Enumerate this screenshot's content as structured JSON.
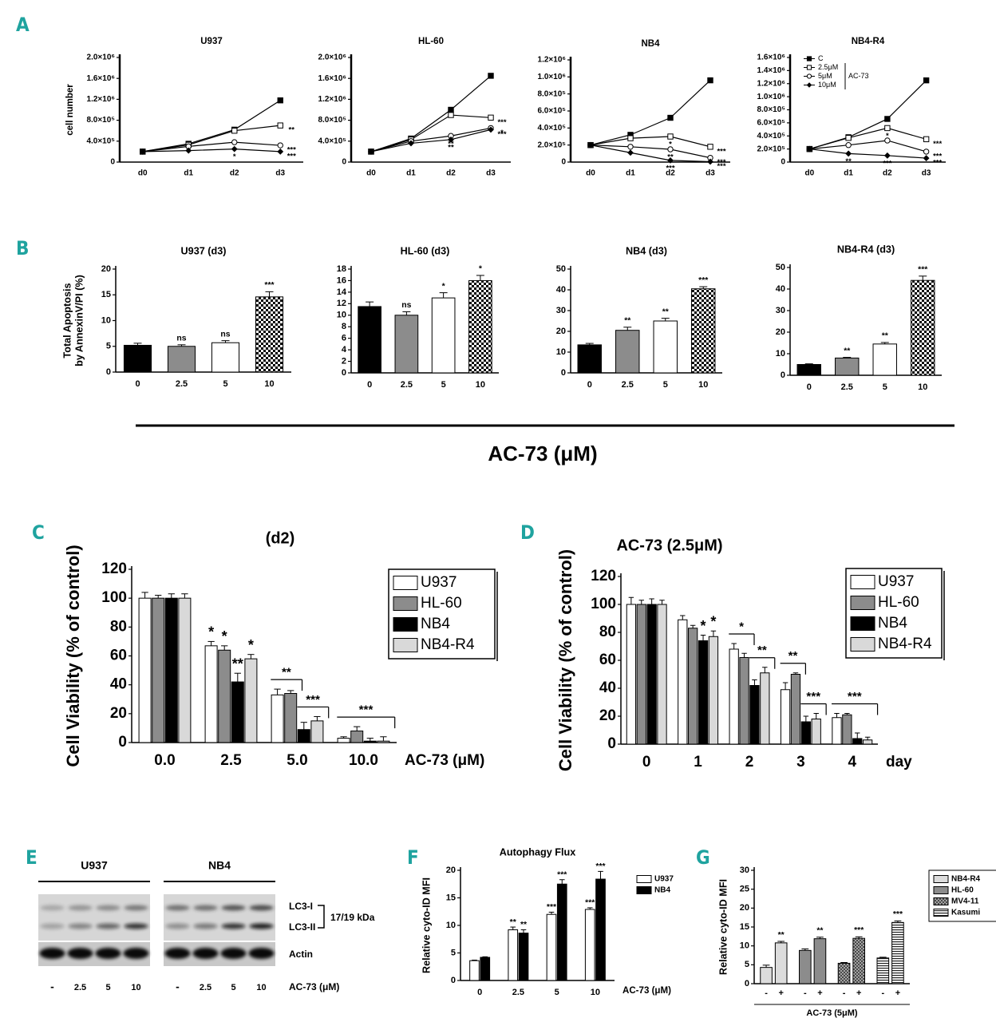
{
  "shared_xlabel": "AC-73 (μM)",
  "blot": {
    "panel": "E",
    "groups": [
      "U937",
      "NB4"
    ],
    "bands": [
      "LC3-I",
      "LC3-II",
      "Actin"
    ],
    "size": "17/19 kDa",
    "lanes": [
      "-",
      "2.5",
      "5",
      "10"
    ],
    "xlabel": "AC-73 (μM)"
  },
  "chart_data": [
    {
      "panel": "A",
      "type": "line",
      "title": "U937",
      "ylabel": "cell number",
      "categories": [
        "d0",
        "d1",
        "d2",
        "d3"
      ],
      "ylim": [
        0,
        2000000
      ],
      "yticks": [
        0,
        {
          "value": 400000,
          "label": "4.0×10⁵"
        },
        {
          "value": 800000,
          "label": "8.0×10⁵"
        },
        {
          "value": 1200000,
          "label": "1.2×10⁶"
        },
        {
          "value": 1600000,
          "label": "1.6×10⁶"
        },
        {
          "value": 2000000,
          "label": "2.0×10⁶"
        }
      ],
      "series": [
        {
          "color": "#000000",
          "marker": "filled-square",
          "values": [
            200000,
            350000,
            620000,
            1180000
          ],
          "significance": [
            null,
            null,
            null,
            null
          ]
        },
        {
          "color": "#000000",
          "marker": "open-square",
          "values": [
            200000,
            330000,
            600000,
            700000
          ],
          "significance": [
            null,
            null,
            null,
            "**"
          ]
        },
        {
          "color": "#000000",
          "marker": "open-circle",
          "values": [
            200000,
            300000,
            380000,
            320000
          ],
          "significance": [
            null,
            null,
            "*",
            "***"
          ]
        },
        {
          "color": "#000000",
          "marker": "filled-diamond",
          "values": [
            200000,
            220000,
            250000,
            200000
          ],
          "significance": [
            null,
            null,
            "*",
            "***"
          ]
        }
      ]
    },
    {
      "type": "line",
      "title": "HL-60",
      "categories": [
        "d0",
        "d1",
        "d2",
        "d3"
      ],
      "ylim": [
        0,
        2000000
      ],
      "yticks": [
        0,
        {
          "value": 400000,
          "label": "4.0×10⁵"
        },
        {
          "value": 800000,
          "label": "8.0×10⁵"
        },
        {
          "value": 1200000,
          "label": "1.2×10⁶"
        },
        {
          "value": 1600000,
          "label": "1.6×10⁶"
        },
        {
          "value": 2000000,
          "label": "2.0×10⁶"
        }
      ],
      "series": [
        {
          "color": "#000000",
          "marker": "filled-square",
          "values": [
            200000,
            450000,
            1000000,
            1650000
          ],
          "significance": [
            null,
            null,
            null,
            null
          ]
        },
        {
          "color": "#000000",
          "marker": "open-square",
          "values": [
            200000,
            430000,
            900000,
            850000
          ],
          "significance": [
            null,
            null,
            null,
            "***"
          ]
        },
        {
          "color": "#000000",
          "marker": "open-circle",
          "values": [
            200000,
            400000,
            500000,
            650000
          ],
          "significance": [
            null,
            null,
            "**",
            "*"
          ]
        },
        {
          "color": "#000000",
          "marker": "filled-diamond",
          "values": [
            200000,
            360000,
            430000,
            620000
          ],
          "significance": [
            null,
            null,
            "**",
            "***"
          ]
        }
      ]
    },
    {
      "type": "line",
      "title": "NB4",
      "categories": [
        "d0",
        "d1",
        "d2",
        "d3"
      ],
      "ylim": [
        0,
        1200000
      ],
      "yticks": [
        0,
        {
          "value": 200000,
          "label": "2.0×10⁵"
        },
        {
          "value": 400000,
          "label": "4.0×10⁵"
        },
        {
          "value": 600000,
          "label": "6.0×10⁵"
        },
        {
          "value": 800000,
          "label": "8.0×10⁵"
        },
        {
          "value": 1000000,
          "label": "1.0×10⁶"
        },
        {
          "value": 1200000,
          "label": "1.2×10⁶"
        }
      ],
      "series": [
        {
          "color": "#000000",
          "marker": "filled-square",
          "values": [
            200000,
            320000,
            520000,
            960000
          ],
          "significance": [
            null,
            null,
            null,
            null
          ]
        },
        {
          "color": "#000000",
          "marker": "open-square",
          "values": [
            200000,
            280000,
            300000,
            180000
          ],
          "significance": [
            null,
            null,
            "*",
            "***"
          ]
        },
        {
          "color": "#000000",
          "marker": "open-circle",
          "values": [
            200000,
            180000,
            150000,
            50000
          ],
          "significance": [
            null,
            null,
            "**",
            "***"
          ]
        },
        {
          "color": "#000000",
          "marker": "filled-diamond",
          "values": [
            200000,
            110000,
            20000,
            5000
          ],
          "significance": [
            null,
            null,
            "***",
            "***"
          ]
        }
      ]
    },
    {
      "type": "line",
      "title": "NB4-R4",
      "categories": [
        "d0",
        "d1",
        "d2",
        "d3"
      ],
      "legend": "upper left",
      "legend_group": "AC-73",
      "ylim": [
        0,
        1600000
      ],
      "yticks": [
        0,
        {
          "value": 200000,
          "label": "2.0×10⁵"
        },
        {
          "value": 400000,
          "label": "4.0×10⁵"
        },
        {
          "value": 600000,
          "label": "6.0×10⁵"
        },
        {
          "value": 800000,
          "label": "8.0×10⁵"
        },
        {
          "value": 1000000,
          "label": "1.0×10⁶"
        },
        {
          "value": 1200000,
          "label": "1.2×10⁶"
        },
        {
          "value": 1400000,
          "label": "1.4×10⁶"
        },
        {
          "value": 1600000,
          "label": "1.6×10⁶"
        }
      ],
      "series": [
        {
          "name": "C",
          "color": "#000000",
          "marker": "filled-square",
          "values": [
            200000,
            380000,
            660000,
            1250000
          ],
          "significance": [
            null,
            null,
            null,
            null
          ]
        },
        {
          "name": "2.5μM",
          "color": "#000000",
          "marker": "open-square",
          "values": [
            200000,
            370000,
            520000,
            350000
          ],
          "significance": [
            null,
            null,
            "*",
            "***"
          ]
        },
        {
          "name": "5μM",
          "color": "#000000",
          "marker": "open-circle",
          "values": [
            200000,
            260000,
            330000,
            160000
          ],
          "significance": [
            null,
            null,
            null,
            "***"
          ]
        },
        {
          "name": "10μM",
          "color": "#000000",
          "marker": "filled-diamond",
          "values": [
            200000,
            130000,
            100000,
            60000
          ],
          "significance": [
            null,
            "**",
            "***",
            "***"
          ]
        }
      ]
    },
    {
      "panel": "B",
      "type": "bar",
      "title": "U937 (d3)",
      "ylabel": [
        "Total Apoptosis",
        "by AnnexinV/PI (%)"
      ],
      "categories": [
        "0",
        "2.5",
        "5",
        "10"
      ],
      "values": [
        5.2,
        5.0,
        5.7,
        14.6
      ],
      "errors": [
        0.4,
        0.3,
        0.4,
        1.0
      ],
      "significance": [
        null,
        "ns",
        "ns",
        "***"
      ],
      "colors": [
        "#000000",
        "#8c8c8c",
        "#ffffff",
        "checker"
      ],
      "ylim": [
        0,
        20
      ],
      "yticks": [
        0,
        5,
        10,
        15,
        20
      ]
    },
    {
      "type": "bar",
      "title": "HL-60 (d3)",
      "categories": [
        "0",
        "2.5",
        "5",
        "10"
      ],
      "values": [
        11.5,
        10,
        13,
        16
      ],
      "errors": [
        0.8,
        0.6,
        0.9,
        0.9
      ],
      "significance": [
        null,
        "ns",
        "*",
        "*"
      ],
      "colors": [
        "#000000",
        "#8c8c8c",
        "#ffffff",
        "checker"
      ],
      "ylim": [
        0,
        18
      ],
      "yticks": [
        0,
        2,
        4,
        6,
        8,
        10,
        12,
        14,
        16,
        18
      ]
    },
    {
      "type": "bar",
      "title": "NB4 (d3)",
      "categories": [
        "0",
        "2.5",
        "5",
        "10"
      ],
      "values": [
        13.5,
        20.5,
        25,
        40.5
      ],
      "errors": [
        0.7,
        1.5,
        1.3,
        1.0
      ],
      "significance": [
        null,
        "**",
        "**",
        "***"
      ],
      "colors": [
        "#000000",
        "#8c8c8c",
        "#ffffff",
        "checker"
      ],
      "ylim": [
        0,
        50
      ],
      "yticks": [
        0,
        10,
        20,
        30,
        40,
        50
      ]
    },
    {
      "type": "bar",
      "title": "NB4-R4 (d3)",
      "categories": [
        "0",
        "2.5",
        "5",
        "10"
      ],
      "values": [
        5,
        8,
        14.5,
        44
      ],
      "errors": [
        0.3,
        0.3,
        0.7,
        2.0
      ],
      "significance": [
        null,
        "**",
        "**",
        "***"
      ],
      "colors": [
        "#000000",
        "#8c8c8c",
        "#ffffff",
        "checker"
      ],
      "ylim": [
        0,
        50
      ],
      "yticks": [
        0,
        10,
        20,
        30,
        40,
        50
      ]
    },
    {
      "panel": "C",
      "type": "grouped_bar",
      "title": "(d2)",
      "ylabel": "Cell Viability (%  of control)",
      "xlabel": "AC-73 (μM)",
      "categories": [
        "0.0",
        "2.5",
        "5.0",
        "10.0"
      ],
      "legend": "upper right",
      "legend_frame": true,
      "ylim": [
        0,
        120
      ],
      "yticks": [
        0,
        20,
        40,
        60,
        80,
        100,
        120
      ],
      "series": [
        {
          "name": "U937",
          "color": "#ffffff",
          "values": [
            100,
            67,
            33,
            3
          ],
          "errors": [
            4,
            3,
            4,
            1
          ],
          "significance": [
            null,
            "*",
            null,
            null
          ]
        },
        {
          "name": "HL-60",
          "color": "#8c8c8c",
          "values": [
            100,
            64,
            34,
            8
          ],
          "errors": [
            2,
            3,
            2,
            3
          ],
          "significance": [
            null,
            "*",
            null,
            null
          ]
        },
        {
          "name": "NB4",
          "color": "#000000",
          "values": [
            100,
            42,
            9,
            1
          ],
          "errors": [
            3,
            6,
            5,
            2
          ],
          "significance": [
            null,
            "**",
            null,
            null
          ]
        },
        {
          "name": "NB4-R4",
          "color": "#d9d9d9",
          "values": [
            100,
            58,
            15,
            1
          ],
          "errors": [
            3,
            3,
            3,
            3
          ],
          "significance": [
            null,
            "*",
            null,
            null
          ]
        }
      ],
      "group_brackets": [
        null,
        null,
        [
          "**",
          "***"
        ],
        "***"
      ]
    },
    {
      "panel": "D",
      "type": "grouped_bar",
      "title": "AC-73 (2.5μM)",
      "ylabel": "Cell Viability (% of control)",
      "xlabel": "day",
      "categories": [
        "0",
        "1",
        "2",
        "3",
        "4"
      ],
      "legend": "upper right",
      "legend_frame": true,
      "ylim": [
        0,
        120
      ],
      "yticks": [
        0,
        20,
        40,
        60,
        80,
        100,
        120
      ],
      "series": [
        {
          "name": "U937",
          "color": "#ffffff",
          "values": [
            100,
            89,
            68,
            39,
            19
          ],
          "errors": [
            5,
            3,
            4,
            5,
            3
          ],
          "significance": [
            null,
            null,
            null,
            null,
            null
          ]
        },
        {
          "name": "HL-60",
          "color": "#8c8c8c",
          "values": [
            100,
            83,
            62,
            50,
            21
          ],
          "errors": [
            3,
            2,
            3,
            1,
            1
          ],
          "significance": [
            null,
            null,
            null,
            null,
            null
          ]
        },
        {
          "name": "NB4",
          "color": "#000000",
          "values": [
            100,
            74,
            42,
            16,
            4
          ],
          "errors": [
            4,
            4,
            4,
            4,
            4
          ],
          "significance": [
            null,
            "*",
            null,
            null,
            null
          ]
        },
        {
          "name": "NB4-R4",
          "color": "#d9d9d9",
          "values": [
            100,
            77,
            51,
            18,
            3
          ],
          "errors": [
            3,
            4,
            4,
            4,
            2
          ],
          "significance": [
            null,
            "*",
            null,
            null,
            null
          ]
        }
      ],
      "group_brackets": [
        null,
        null,
        [
          "*",
          "**"
        ],
        [
          "**",
          "***"
        ],
        "***"
      ]
    },
    {
      "panel": "F",
      "type": "grouped_bar",
      "title": "Autophagy Flux",
      "ylabel": "Relative cyto-ID MFI",
      "xlabel": "AC-73 (μM)",
      "categories": [
        "0",
        "2.5",
        "5",
        "10"
      ],
      "legend": "right",
      "ylim": [
        0,
        20
      ],
      "yticks": [
        0,
        5,
        10,
        15,
        20
      ],
      "series": [
        {
          "name": "U937",
          "color": "#ffffff",
          "values": [
            3.6,
            9.2,
            12,
            12.9
          ],
          "errors": [
            0.1,
            0.5,
            0.4,
            0.3
          ],
          "significance": [
            null,
            "**",
            "***",
            "***"
          ]
        },
        {
          "name": "NB4",
          "color": "#000000",
          "values": [
            4.2,
            8.6,
            17.5,
            18.4
          ],
          "errors": [
            0.1,
            0.6,
            0.8,
            1.4
          ],
          "significance": [
            null,
            "**",
            "***",
            "***"
          ]
        }
      ]
    },
    {
      "panel": "G",
      "type": "paired_bar",
      "ylabel": "Relative cyto-ID MFI",
      "xlabel": "AC-73 (5μM)",
      "categories": [
        "-",
        "+"
      ],
      "legend": "right",
      "legend_frame": true,
      "ylim": [
        0,
        30
      ],
      "yticks": [
        0,
        5,
        10,
        15,
        20,
        25,
        30
      ],
      "series": [
        {
          "name": "NB4-R4",
          "color": "#dcdcdc",
          "values": [
            4.3,
            10.8
          ],
          "errors": [
            0.6,
            0.4
          ],
          "significance": [
            null,
            "**"
          ]
        },
        {
          "name": "HL-60",
          "color": "#8c8c8c",
          "values": [
            8.8,
            11.9
          ],
          "errors": [
            0.4,
            0.4
          ],
          "significance": [
            null,
            "**"
          ]
        },
        {
          "name": "MV4-11",
          "color": "crosshatch",
          "values": [
            5.4,
            12
          ],
          "errors": [
            0.2,
            0.4
          ],
          "significance": [
            null,
            "***"
          ]
        },
        {
          "name": "Kasumi",
          "color": "hstripes",
          "values": [
            6.8,
            16.2
          ],
          "errors": [
            0.2,
            0.4
          ],
          "significance": [
            null,
            "***"
          ]
        }
      ]
    }
  ]
}
